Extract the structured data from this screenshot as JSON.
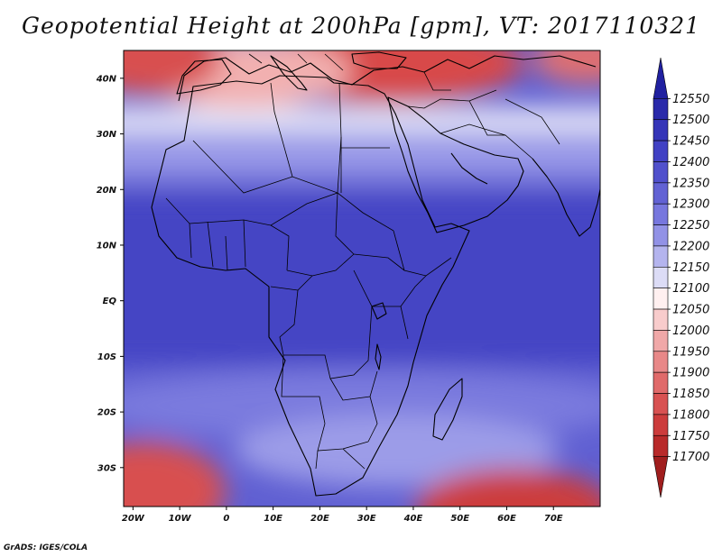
{
  "title": "Geopotential Height at 200hPa [gpm], VT: 2017110321",
  "credit": "GrADS: IGES/COLA",
  "map": {
    "lon_range": [
      -22,
      80
    ],
    "lat_range": [
      -37,
      45
    ],
    "x_ticks": [
      {
        "value": -20,
        "label": "20W"
      },
      {
        "value": -10,
        "label": "10W"
      },
      {
        "value": 0,
        "label": "0"
      },
      {
        "value": 10,
        "label": "10E"
      },
      {
        "value": 20,
        "label": "20E"
      },
      {
        "value": 30,
        "label": "30E"
      },
      {
        "value": 40,
        "label": "40E"
      },
      {
        "value": 50,
        "label": "50E"
      },
      {
        "value": 60,
        "label": "60E"
      },
      {
        "value": 70,
        "label": "70E"
      }
    ],
    "y_ticks": [
      {
        "value": 40,
        "label": "40N"
      },
      {
        "value": 30,
        "label": "30N"
      },
      {
        "value": 20,
        "label": "20N"
      },
      {
        "value": 10,
        "label": "10N"
      },
      {
        "value": 0,
        "label": "EQ"
      },
      {
        "value": -10,
        "label": "10S"
      },
      {
        "value": -20,
        "label": "20S"
      },
      {
        "value": -30,
        "label": "30S"
      }
    ]
  },
  "colorbar": {
    "labels": [
      "12550",
      "12500",
      "12450",
      "12400",
      "12350",
      "12300",
      "12250",
      "12200",
      "12150",
      "12100",
      "12050",
      "12000",
      "11950",
      "11900",
      "11850",
      "11800",
      "11750",
      "11700"
    ],
    "colors": [
      "#2020a0",
      "#2a2aaa",
      "#3535b8",
      "#4141c4",
      "#5050cc",
      "#6262d4",
      "#7777de",
      "#9292e6",
      "#b4b4ee",
      "#dcdcf6",
      "#fff0f0",
      "#f8cccc",
      "#f0a8a8",
      "#e88888",
      "#e06a6a",
      "#d85252",
      "#cc3c3c",
      "#b82a2a",
      "#a01e1e"
    ]
  }
}
